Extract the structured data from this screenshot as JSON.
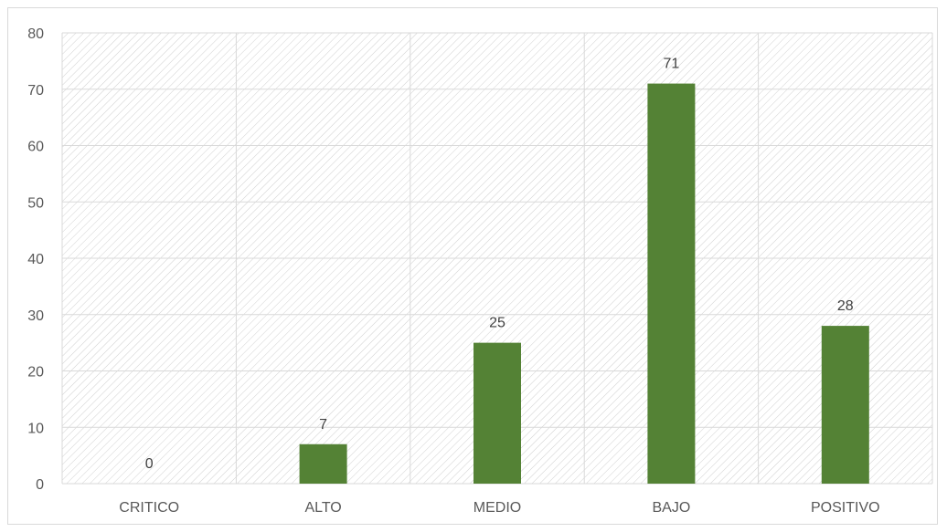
{
  "chart_data": {
    "type": "bar",
    "categories": [
      "CRITICO",
      "ALTO",
      "MEDIO",
      "BAJO",
      "POSITIVO"
    ],
    "values": [
      0,
      7,
      25,
      71,
      28
    ],
    "ylim": [
      0,
      80
    ],
    "yticks": [
      0,
      10,
      20,
      30,
      40,
      50,
      60,
      70,
      80
    ],
    "data_labels": true,
    "grid": true,
    "plot_background": "diagonal hatch",
    "colors": {
      "bar": "#548235",
      "grid": "#d9d9d9",
      "hatch": "#d0d0d0"
    }
  }
}
